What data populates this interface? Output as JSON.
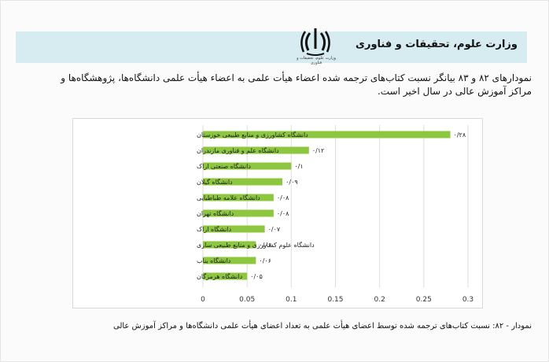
{
  "header": {
    "title": "وزارت علوم، تحقیقات و فناوری",
    "logo_name": "iran-emblem",
    "logo_caption": "وزارت علوم، تحقیقات و فناوری"
  },
  "intro_text": "نمودارهای ۸۲ و ۸۳ بیانگر نسبت کتاب‌های ترجمه شده اعضاء هیأت علمی به اعضاء هیأت علمی دانشگاه‌ها، پژوهشگاه‌ها و مراکز آموزش عالی در سال اخیر است.",
  "caption": "نمودار - ۸۲: نسبت کتاب‌های ترجمه شده توسط اعضای هیأت علمی به تعداد اعضای هیأت علمی دانشگاه‌ها و مراکز آموزش عالی",
  "colors": {
    "bar": "#8dc63f",
    "header_band": "#d7ecf1",
    "grid": "#dedede"
  },
  "chart_data": {
    "type": "bar",
    "orientation": "horizontal",
    "categories": [
      "دانشگاه کشاورزی و منابع طبیعی خوزستان",
      "دانشگاه علم و فناوری مازندران",
      "دانشگاه صنعتی اراک",
      "دانشگاه گیلان",
      "دانشگاه علامه طباطبایی",
      "دانشگاه تهران",
      "دانشگاه اراک",
      "دانشگاه علوم کشاورزی و منابع طبیعی ساری",
      "دانشگاه بناب",
      "دانشگاه هرمزگان"
    ],
    "values": [
      0.28,
      0.12,
      0.1,
      0.09,
      0.08,
      0.08,
      0.07,
      0.06,
      0.06,
      0.05
    ],
    "value_labels": [
      "۰/۲۸",
      "۰/۱۲",
      "۰/۱",
      "۰/۰۹",
      "۰/۰۸",
      "۰/۰۸",
      "۰/۰۷",
      "۰/۰۶",
      "۰/۰۶",
      "۰/۰۵"
    ],
    "xlim": [
      0,
      0.3
    ],
    "x_ticks": [
      0,
      0.05,
      0.1,
      0.15,
      0.2,
      0.25,
      0.3
    ],
    "x_tick_labels": [
      "0",
      "0.05",
      "0.1",
      "0.15",
      "0.2",
      "0.25",
      "0.3"
    ],
    "grid": "vertical"
  }
}
